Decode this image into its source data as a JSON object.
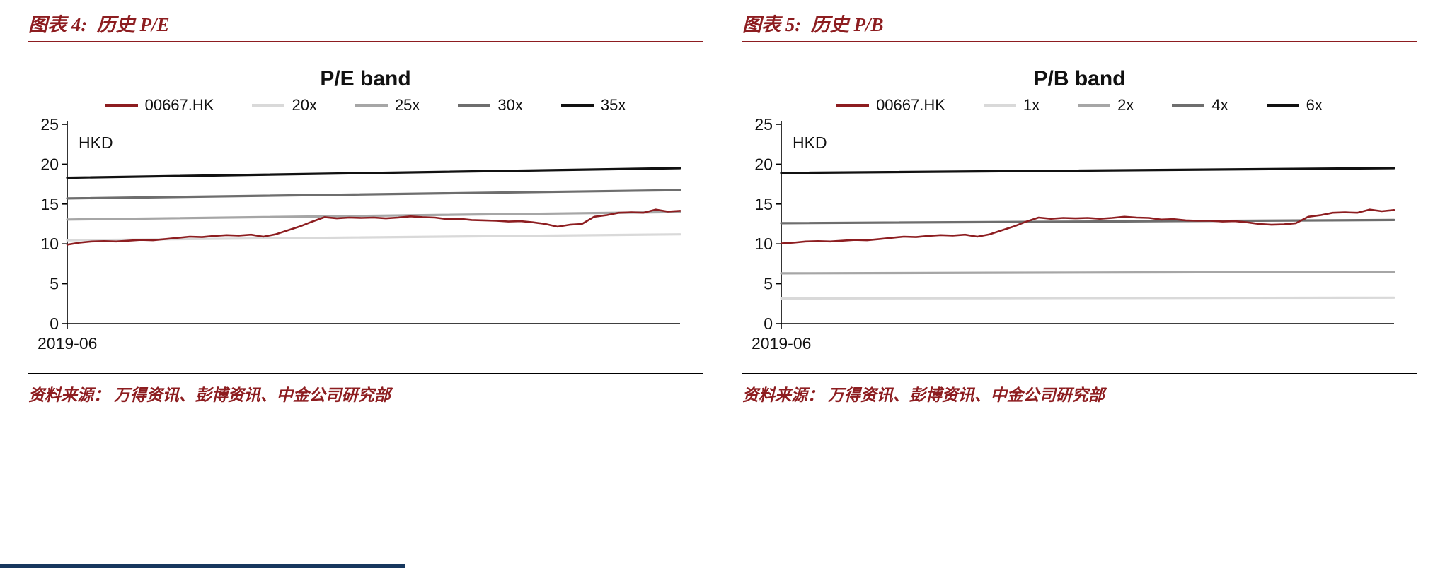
{
  "page": {
    "accent_color": "#8d1d20",
    "footer_bar_color": "#17375e"
  },
  "figures": [
    {
      "heading": "图表 4:  历史 P/E",
      "source": "资料来源： 万得资讯、彭博资讯、中金公司研究部"
    },
    {
      "heading": "图表 5:  历史 P/B",
      "source": "资料来源： 万得资讯、彭博资讯、中金公司研究部"
    }
  ],
  "chart_data": [
    {
      "type": "line",
      "title": "P/E band",
      "unit_label": "HKD",
      "x_ticks": [
        "2019-06"
      ],
      "ylim": [
        0,
        25
      ],
      "yticks": [
        0,
        5,
        10,
        15,
        20,
        25
      ],
      "grid": false,
      "legend_position": "top",
      "series": [
        {
          "name": "00667.HK",
          "color": "#8d1d20",
          "width": 2.6,
          "values": [
            9.9,
            10.15,
            10.3,
            10.35,
            10.3,
            10.4,
            10.5,
            10.45,
            10.6,
            10.75,
            10.9,
            10.85,
            11.0,
            11.1,
            11.05,
            11.15,
            10.9,
            11.2,
            11.7,
            12.2,
            12.8,
            13.35,
            13.2,
            13.3,
            13.25,
            13.3,
            13.2,
            13.3,
            13.45,
            13.35,
            13.3,
            13.1,
            13.15,
            13.0,
            12.95,
            12.9,
            12.8,
            12.85,
            12.7,
            12.5,
            12.15,
            12.4,
            12.5,
            13.4,
            13.6,
            13.9,
            13.95,
            13.9,
            14.3,
            14.05,
            14.15
          ]
        },
        {
          "name": "20x",
          "color": "#d9d9d9",
          "width": 3.2,
          "values": [
            10.45,
            11.2
          ]
        },
        {
          "name": "25x",
          "color": "#a6a6a6",
          "width": 3.2,
          "values": [
            13.05,
            14.0
          ]
        },
        {
          "name": "30x",
          "color": "#6e6e6e",
          "width": 3.2,
          "values": [
            15.7,
            16.75
          ]
        },
        {
          "name": "35x",
          "color": "#111111",
          "width": 3.2,
          "values": [
            18.3,
            19.5
          ]
        }
      ]
    },
    {
      "type": "line",
      "title": "P/B band",
      "unit_label": "HKD",
      "x_ticks": [
        "2019-06"
      ],
      "ylim": [
        0,
        25
      ],
      "yticks": [
        0,
        5,
        10,
        15,
        20,
        25
      ],
      "grid": false,
      "legend_position": "top",
      "series": [
        {
          "name": "00667.HK",
          "color": "#8d1d20",
          "width": 2.6,
          "values": [
            10.05,
            10.15,
            10.3,
            10.35,
            10.3,
            10.4,
            10.5,
            10.45,
            10.6,
            10.75,
            10.9,
            10.85,
            11.0,
            11.1,
            11.05,
            11.15,
            10.9,
            11.2,
            11.7,
            12.2,
            12.8,
            13.3,
            13.15,
            13.25,
            13.2,
            13.25,
            13.15,
            13.25,
            13.4,
            13.3,
            13.25,
            13.05,
            13.1,
            12.95,
            12.9,
            12.9,
            12.8,
            12.85,
            12.7,
            12.5,
            12.4,
            12.45,
            12.6,
            13.4,
            13.6,
            13.9,
            13.95,
            13.9,
            14.3,
            14.1,
            14.25
          ]
        },
        {
          "name": "1x",
          "color": "#d9d9d9",
          "width": 3.2,
          "values": [
            3.15,
            3.25
          ]
        },
        {
          "name": "2x",
          "color": "#a6a6a6",
          "width": 3.2,
          "values": [
            6.3,
            6.5
          ]
        },
        {
          "name": "4x",
          "color": "#6e6e6e",
          "width": 3.2,
          "values": [
            12.6,
            13.0
          ]
        },
        {
          "name": "6x",
          "color": "#111111",
          "width": 3.2,
          "values": [
            18.9,
            19.5
          ]
        }
      ]
    }
  ]
}
